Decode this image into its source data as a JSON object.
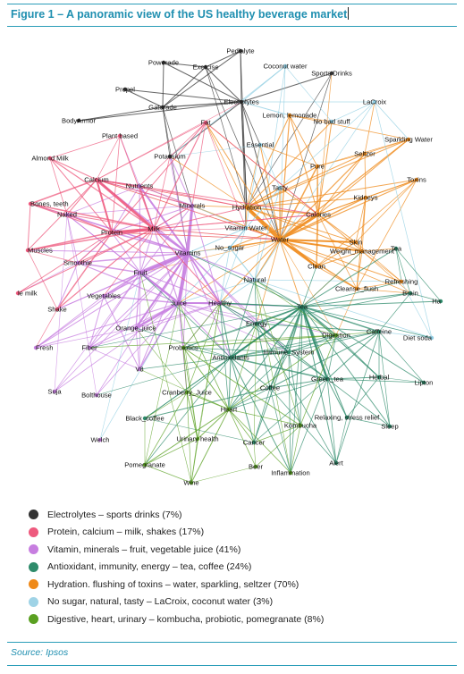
{
  "figure": {
    "title": "Figure 1 – A panoramic view of the US healthy beverage market",
    "source": "Source: Ipsos"
  },
  "colors": {
    "accent": "#1f8fb0",
    "electrolytes": "#333333",
    "protein": "#ee5a7e",
    "vitamin": "#c77ee0",
    "antioxidant": "#2e8b6b",
    "hydration": "#ef8a1a",
    "nosugar": "#9fd3e6",
    "digestive": "#5aa021"
  },
  "legend": [
    {
      "label": "Electrolytes – sports drinks (7%)",
      "color": "#333333"
    },
    {
      "label": "Protein, calcium – milk, shakes (17%)",
      "color": "#ee5a7e"
    },
    {
      "label": "Vitamin, minerals – fruit, vegetable juice (41%)",
      "color": "#c77ee0"
    },
    {
      "label": "Antioxidant, immunity, energy – tea, coffee (24%)",
      "color": "#2e8b6b"
    },
    {
      "label": "Hydration. flushing of toxins – water, sparkling, seltzer (70%)",
      "color": "#ef8a1a"
    },
    {
      "label": "No sugar, natural, tasty – LaCroix, coconut water (3%)",
      "color": "#9fd3e6"
    },
    {
      "label": "Digestive, heart, urinary – kombucha, probiotic, pomegranate (8%)",
      "color": "#5aa021"
    }
  ],
  "nodes": [
    {
      "id": "pedialyte",
      "label": "Pedialyte",
      "group": "e"
    },
    {
      "id": "powerade",
      "label": "Powerade",
      "group": "e"
    },
    {
      "id": "exercise",
      "label": "Exercise",
      "group": "e"
    },
    {
      "id": "coconut",
      "label": "Coconut water",
      "group": "n"
    },
    {
      "id": "sports",
      "label": "Sports Drinks",
      "group": "e"
    },
    {
      "id": "propel",
      "label": "Propel",
      "group": "e"
    },
    {
      "id": "electrolytes",
      "label": "Electrolytes",
      "group": "e"
    },
    {
      "id": "lacroix",
      "label": "LaCroix",
      "group": "n"
    },
    {
      "id": "gatorade",
      "label": "Gatorade",
      "group": "e"
    },
    {
      "id": "lemon",
      "label": "Lemon, lemonade",
      "group": "h"
    },
    {
      "id": "bodyarmor",
      "label": "BodyArmor",
      "group": "e"
    },
    {
      "id": "fat",
      "label": "Fat",
      "group": "p"
    },
    {
      "id": "nobad",
      "label": "No bad stuff",
      "group": "n"
    },
    {
      "id": "plant",
      "label": "Plant based",
      "group": "p"
    },
    {
      "id": "sparkling",
      "label": "Sparkling Water",
      "group": "h"
    },
    {
      "id": "essential",
      "label": "Essential",
      "group": "n"
    },
    {
      "id": "almond",
      "label": "Almond Milk",
      "group": "p"
    },
    {
      "id": "potassium",
      "label": "Potassium",
      "group": "e"
    },
    {
      "id": "seltzer",
      "label": "Seltzer",
      "group": "h"
    },
    {
      "id": "pure",
      "label": "Pure",
      "group": "h"
    },
    {
      "id": "toxins",
      "label": "Toxins",
      "group": "h"
    },
    {
      "id": "calcium",
      "label": "Calcium",
      "group": "p"
    },
    {
      "id": "nutrients",
      "label": "Nutrients",
      "group": "v"
    },
    {
      "id": "tasty",
      "label": "Tasty",
      "group": "n"
    },
    {
      "id": "kidneys",
      "label": "Kidneys",
      "group": "h"
    },
    {
      "id": "bones",
      "label": "Bones, teeth",
      "group": "p"
    },
    {
      "id": "minerals",
      "label": "Minerals",
      "group": "v"
    },
    {
      "id": "hydration",
      "label": "Hydration",
      "group": "h"
    },
    {
      "id": "naked",
      "label": "Naked",
      "group": "v"
    },
    {
      "id": "calories",
      "label": "Calories",
      "group": "h"
    },
    {
      "id": "vitwater",
      "label": "Vitamin Water",
      "group": "n"
    },
    {
      "id": "milk",
      "label": "Milk",
      "group": "p"
    },
    {
      "id": "protein",
      "label": "Protein",
      "group": "p"
    },
    {
      "id": "nosugar",
      "label": "No_sugar",
      "group": "n"
    },
    {
      "id": "water",
      "label": "Water",
      "group": "h"
    },
    {
      "id": "skin",
      "label": "Skin",
      "group": "h"
    },
    {
      "id": "muscles",
      "label": "Muscles",
      "group": "p"
    },
    {
      "id": "vitamins",
      "label": "Vitamins",
      "group": "v"
    },
    {
      "id": "weight",
      "label": "Weight_management",
      "group": "h"
    },
    {
      "id": "greentea1",
      "label": "Tea",
      "group": "a"
    },
    {
      "id": "smoothie",
      "label": "Smoothie",
      "group": "v"
    },
    {
      "id": "clean",
      "label": "Clean",
      "group": "h"
    },
    {
      "id": "fruit",
      "label": "Fruit",
      "group": "v"
    },
    {
      "id": "natural",
      "label": "Natural",
      "group": "n"
    },
    {
      "id": "refreshing",
      "label": "Refreshing",
      "group": "h"
    },
    {
      "id": "cleanse",
      "label": "Cleanse_flush",
      "group": "h"
    },
    {
      "id": "brain",
      "label": "Brain",
      "group": "a"
    },
    {
      "id": "milk2",
      "label": "le milk",
      "group": "p"
    },
    {
      "id": "vegetables",
      "label": "Vegetables",
      "group": "v"
    },
    {
      "id": "ha",
      "label": "Ha",
      "group": "a"
    },
    {
      "id": "shake",
      "label": "Shake",
      "group": "p"
    },
    {
      "id": "juice",
      "label": "Juice",
      "group": "v"
    },
    {
      "id": "healthy",
      "label": "Healthy",
      "group": "v"
    },
    {
      "id": "tea",
      "label": "Tea",
      "group": "a"
    },
    {
      "id": "energy",
      "label": "Energy",
      "group": "a"
    },
    {
      "id": "orange",
      "label": "Orange_juice",
      "group": "v"
    },
    {
      "id": "digestion",
      "label": "Digestion",
      "group": "d"
    },
    {
      "id": "caffeine",
      "label": "Caffeine",
      "group": "a"
    },
    {
      "id": "fresh",
      "label": "Fresh",
      "group": "v"
    },
    {
      "id": "fiber",
      "label": "Fiber",
      "group": "v"
    },
    {
      "id": "probiotics",
      "label": "Probiotics",
      "group": "d"
    },
    {
      "id": "antioxidants",
      "label": "Antioxidants",
      "group": "a"
    },
    {
      "id": "immune",
      "label": "Immune_System",
      "group": "a"
    },
    {
      "id": "dietsoda",
      "label": "Diet soda",
      "group": "n"
    },
    {
      "id": "v8",
      "label": "V8",
      "group": "v"
    },
    {
      "id": "greentea",
      "label": "Green_tea",
      "group": "a"
    },
    {
      "id": "herbal",
      "label": "Herbal",
      "group": "a"
    },
    {
      "id": "coffee",
      "label": "Coffee",
      "group": "a"
    },
    {
      "id": "suja",
      "label": "Suja",
      "group": "v"
    },
    {
      "id": "bolthouse",
      "label": "Bolthouse",
      "group": "v"
    },
    {
      "id": "cranberry",
      "label": "Cranberry_Juice",
      "group": "d"
    },
    {
      "id": "lipton",
      "label": "Lipton",
      "group": "a"
    },
    {
      "id": "relaxing",
      "label": "Relaxing, stress relief",
      "group": "a"
    },
    {
      "id": "heart",
      "label": "Heart",
      "group": "d"
    },
    {
      "id": "blackcoffee",
      "label": "Black_coffee",
      "group": "a"
    },
    {
      "id": "kombucha",
      "label": "Kombucha",
      "group": "d"
    },
    {
      "id": "sleep",
      "label": "Sleep",
      "group": "a"
    },
    {
      "id": "welch",
      "label": "Welch",
      "group": "v"
    },
    {
      "id": "urinary",
      "label": "Urinary health",
      "group": "d"
    },
    {
      "id": "cancer",
      "label": "Cancer",
      "group": "a"
    },
    {
      "id": "pomegranate",
      "label": "Pomegranate",
      "group": "d"
    },
    {
      "id": "beer",
      "label": "Beer",
      "group": "d"
    },
    {
      "id": "alert",
      "label": "Alert",
      "group": "a"
    },
    {
      "id": "inflammation",
      "label": "Inflammation",
      "group": "d"
    },
    {
      "id": "wine",
      "label": "Wine",
      "group": "d"
    }
  ]
}
